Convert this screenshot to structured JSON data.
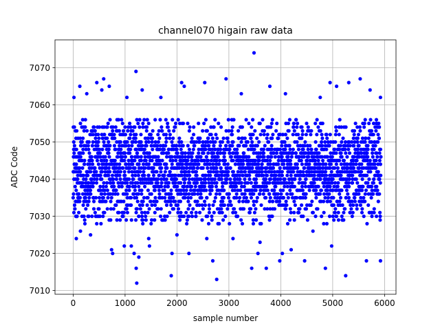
{
  "chart_data": {
    "type": "scatter",
    "title": "channel070 higain raw data",
    "xlabel": "sample number",
    "ylabel": "ADC Code",
    "xlim": [
      -350,
      6220
    ],
    "ylim": [
      7009,
      7077.5
    ],
    "xticks": [
      0,
      1000,
      2000,
      3000,
      4000,
      5000,
      6000
    ],
    "yticks": [
      7010,
      7020,
      7030,
      7040,
      7050,
      7060,
      7070
    ],
    "grid": true,
    "marker_color": "#0000ff",
    "sample_count": 5930,
    "core_band": [
      7028,
      7056
    ],
    "points": [
      {
        "x": 15,
        "y": 7062
      },
      {
        "x": 128,
        "y": 7065
      },
      {
        "x": 262,
        "y": 7063
      },
      {
        "x": 455,
        "y": 7066
      },
      {
        "x": 552,
        "y": 7064
      },
      {
        "x": 588,
        "y": 7067
      },
      {
        "x": 695,
        "y": 7065
      },
      {
        "x": 1035,
        "y": 7062
      },
      {
        "x": 1210,
        "y": 7069
      },
      {
        "x": 1330,
        "y": 7064
      },
      {
        "x": 1690,
        "y": 7062
      },
      {
        "x": 2090,
        "y": 7066
      },
      {
        "x": 2140,
        "y": 7065
      },
      {
        "x": 2535,
        "y": 7066
      },
      {
        "x": 2945,
        "y": 7067
      },
      {
        "x": 3240,
        "y": 7063
      },
      {
        "x": 3485,
        "y": 7074
      },
      {
        "x": 3790,
        "y": 7065
      },
      {
        "x": 4090,
        "y": 7063
      },
      {
        "x": 4760,
        "y": 7062
      },
      {
        "x": 4950,
        "y": 7066
      },
      {
        "x": 5075,
        "y": 7065
      },
      {
        "x": 5310,
        "y": 7066
      },
      {
        "x": 5530,
        "y": 7067
      },
      {
        "x": 5720,
        "y": 7064
      },
      {
        "x": 5920,
        "y": 7062
      },
      {
        "x": 60,
        "y": 7024
      },
      {
        "x": 140,
        "y": 7026
      },
      {
        "x": 335,
        "y": 7025
      },
      {
        "x": 740,
        "y": 7021
      },
      {
        "x": 760,
        "y": 7020
      },
      {
        "x": 985,
        "y": 7022
      },
      {
        "x": 1120,
        "y": 7022
      },
      {
        "x": 1175,
        "y": 7020
      },
      {
        "x": 1215,
        "y": 7016
      },
      {
        "x": 1225,
        "y": 7012
      },
      {
        "x": 1265,
        "y": 7019
      },
      {
        "x": 1455,
        "y": 7024
      },
      {
        "x": 1470,
        "y": 7022
      },
      {
        "x": 1890,
        "y": 7014
      },
      {
        "x": 1905,
        "y": 7020
      },
      {
        "x": 2000,
        "y": 7025
      },
      {
        "x": 2230,
        "y": 7020
      },
      {
        "x": 2575,
        "y": 7024
      },
      {
        "x": 2690,
        "y": 7018
      },
      {
        "x": 2765,
        "y": 7013
      },
      {
        "x": 3080,
        "y": 7024
      },
      {
        "x": 3440,
        "y": 7016
      },
      {
        "x": 3560,
        "y": 7020
      },
      {
        "x": 3600,
        "y": 7023
      },
      {
        "x": 3720,
        "y": 7016
      },
      {
        "x": 3980,
        "y": 7018
      },
      {
        "x": 4030,
        "y": 7020
      },
      {
        "x": 4200,
        "y": 7021
      },
      {
        "x": 4460,
        "y": 7018
      },
      {
        "x": 4620,
        "y": 7026
      },
      {
        "x": 4860,
        "y": 7016
      },
      {
        "x": 4980,
        "y": 7022
      },
      {
        "x": 5250,
        "y": 7014
      },
      {
        "x": 5650,
        "y": 7018
      },
      {
        "x": 5920,
        "y": 7018
      }
    ]
  }
}
